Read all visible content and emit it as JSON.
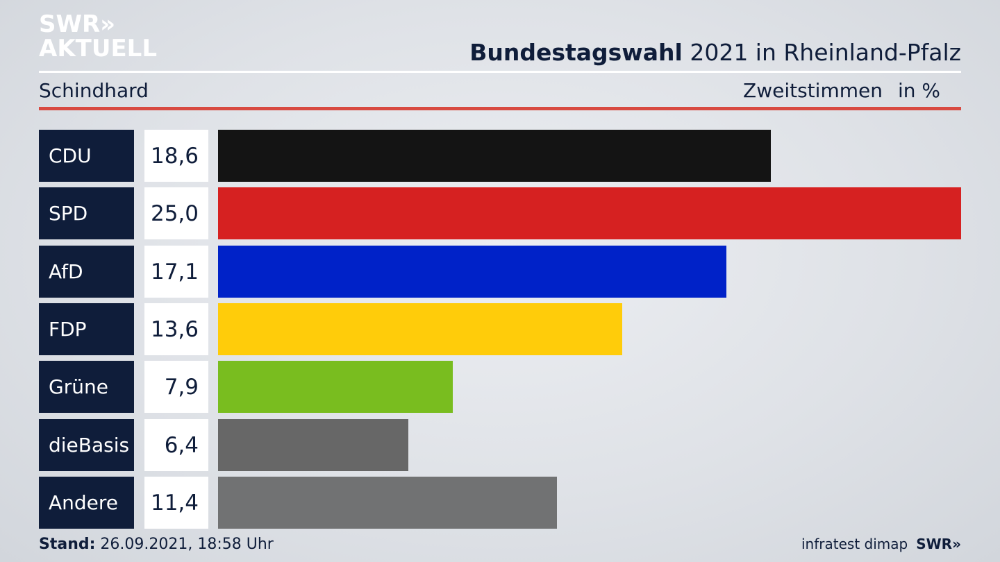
{
  "header": {
    "logo_line1": "SWR»",
    "logo_line2": "AKTUELL",
    "title_bold": "Bundestagswahl",
    "title_rest": " 2021 in Rheinland-Pfalz",
    "location": "Schindhard",
    "measure": "Zweitstimmen",
    "unit": "in %"
  },
  "chart_data": {
    "type": "bar",
    "orientation": "horizontal",
    "categories": [
      "CDU",
      "SPD",
      "AfD",
      "FDP",
      "Grüne",
      "dieBasis",
      "Andere"
    ],
    "values": [
      18.6,
      25.0,
      17.1,
      13.6,
      7.9,
      6.4,
      11.4
    ],
    "value_labels": [
      "18,6",
      "25,0",
      "17,1",
      "13,6",
      "7,9",
      "6,4",
      "11,4"
    ],
    "colors": [
      "#141414",
      "#d62121",
      "#0022c8",
      "#ffcc0a",
      "#79bd1f",
      "#676767",
      "#717273"
    ],
    "xlim": [
      0,
      25.0
    ],
    "grid": false,
    "legend": "none"
  },
  "footer": {
    "stand_label": "Stand:",
    "stand_value": " 26.09.2021, 18:58 Uhr",
    "source": "infratest dimap",
    "brand": "SWR»"
  }
}
